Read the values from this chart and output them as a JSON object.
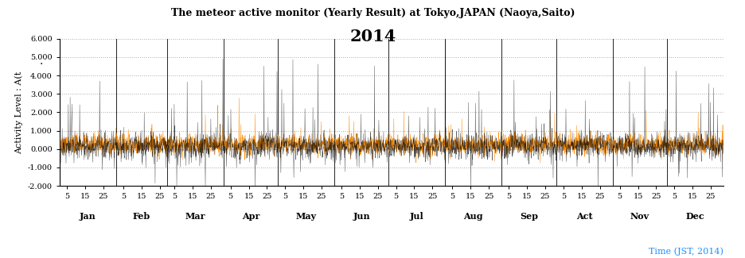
{
  "title_line1": "The meteor active monitor (Yearly Result) at Tokyo,JAPAN (Naoya,Saito)",
  "title_line2": "2014",
  "ylabel": "Activity Level : A(t",
  "xlabel_note": "Time (JST, 2014)",
  "ylim": [
    -2.0,
    6.0
  ],
  "yticks": [
    -2.0,
    -1.0,
    0.0,
    1.0,
    2.0,
    3.0,
    4.0,
    5.0,
    6.0
  ],
  "ytick_labels": [
    "-2.000",
    "-1.000",
    "0.000",
    "1.000",
    "2.000",
    "3.000",
    "4.000",
    "5.000",
    "6.000"
  ],
  "months": [
    "Jan",
    "Feb",
    "Mar",
    "Apr",
    "May",
    "Jun",
    "Jul",
    "Aug",
    "Sep",
    "Act",
    "Nov",
    "Dec"
  ],
  "month_days": [
    31,
    28,
    31,
    30,
    31,
    30,
    31,
    31,
    30,
    31,
    30,
    31
  ],
  "day_ticks": [
    5,
    15,
    25
  ],
  "black_color": "#000000",
  "orange_color": "#FF8C00",
  "title_color": "#000000",
  "note_color": "#1E90FF",
  "grid_color": "#AAAAAA",
  "seed": 42
}
